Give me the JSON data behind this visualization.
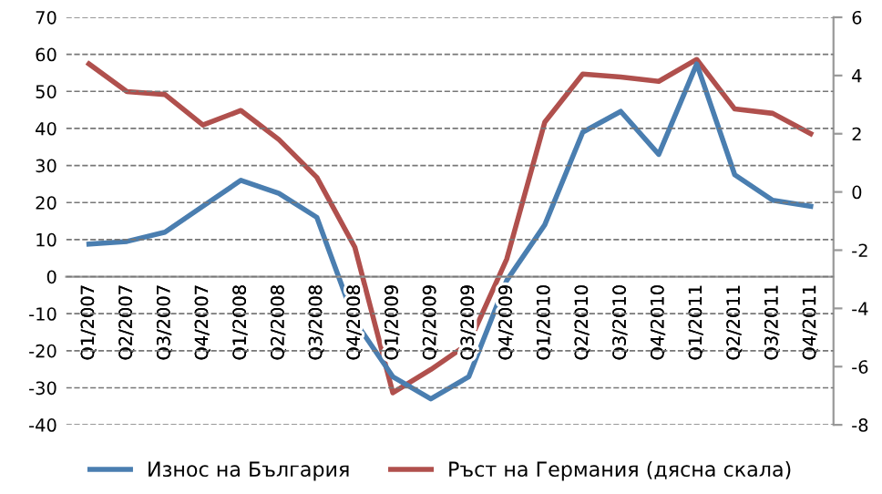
{
  "chart_data": {
    "type": "line",
    "categories": [
      "Q1/2007",
      "Q2/2007",
      "Q3/2007",
      "Q4/2007",
      "Q1/2008",
      "Q2/2008",
      "Q3/2008",
      "Q4/2008",
      "Q1/2009",
      "Q2/2009",
      "Q3/2009",
      "Q4/2009",
      "Q1/2010",
      "Q2/2010",
      "Q3/2010",
      "Q4/2010",
      "Q1/2011",
      "Q2/2011",
      "Q3/2011",
      "Q4/2011"
    ],
    "series": [
      {
        "name": "Износ на България",
        "color": "#4a7eb0",
        "values": [
          8.8,
          9.5,
          12,
          19,
          26,
          22.5,
          16,
          -12,
          -27,
          -33,
          -27,
          -1,
          14,
          39,
          44.6,
          33,
          57.4,
          27.5,
          20.6,
          19
        ]
      },
      {
        "name": "Ръст на Германия (дясна скала)",
        "color": "#b0504d",
        "axis": "y2",
        "values": [
          4.4,
          3.45,
          3.35,
          2.3,
          2.8,
          1.8,
          0.5,
          -1.9,
          -6.9,
          -6.1,
          -5.2,
          -2.3,
          2.4,
          4.05,
          3.95,
          3.8,
          4.55,
          2.85,
          2.7,
          2.0
        ]
      }
    ],
    "ylim": [
      -40,
      70
    ],
    "yticks": [
      -40,
      -30,
      -20,
      -10,
      0,
      10,
      20,
      30,
      40,
      50,
      60,
      70
    ],
    "y2lim": [
      -8,
      6
    ],
    "y2ticks": [
      -8,
      -6,
      -4,
      -2,
      0,
      2,
      4,
      6
    ],
    "grid": "y",
    "legend": "bottom",
    "line_style": "solid"
  }
}
